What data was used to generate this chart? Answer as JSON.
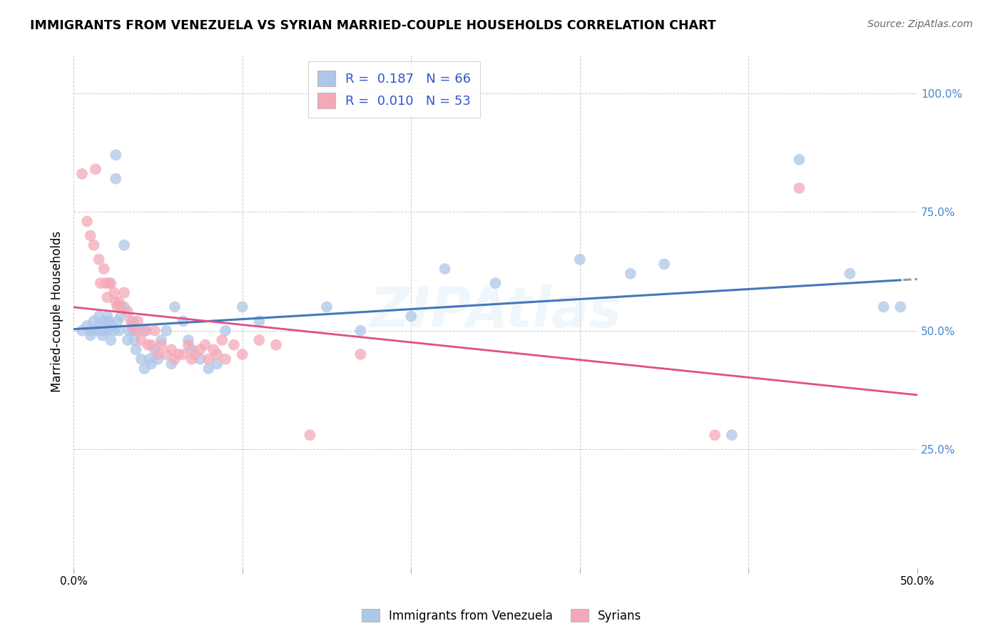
{
  "title": "IMMIGRANTS FROM VENEZUELA VS SYRIAN MARRIED-COUPLE HOUSEHOLDS CORRELATION CHART",
  "source": "Source: ZipAtlas.com",
  "xlabel": "",
  "ylabel": "Married-couple Households",
  "xlim": [
    0.0,
    0.5
  ],
  "ylim": [
    0.0,
    1.08
  ],
  "yticks": [
    0.25,
    0.5,
    0.75,
    1.0
  ],
  "ytick_labels": [
    "25.0%",
    "50.0%",
    "75.0%",
    "100.0%"
  ],
  "xticks": [
    0.0,
    0.1,
    0.2,
    0.3,
    0.4,
    0.5
  ],
  "xtick_labels": [
    "0.0%",
    "",
    "",
    "",
    "",
    "50.0%"
  ],
  "legend_r_venezuela": "0.187",
  "legend_n_venezuela": "66",
  "legend_r_syrian": "0.010",
  "legend_n_syrian": "53",
  "color_venezuela": "#aec6e8",
  "color_syrian": "#f4a9b8",
  "color_trendline_venezuela": "#4477bb",
  "color_trendline_syrian": "#e05080",
  "venezuela_x": [
    0.005,
    0.008,
    0.01,
    0.01,
    0.012,
    0.013,
    0.015,
    0.015,
    0.016,
    0.017,
    0.018,
    0.018,
    0.019,
    0.02,
    0.02,
    0.021,
    0.022,
    0.023,
    0.024,
    0.025,
    0.025,
    0.026,
    0.027,
    0.028,
    0.03,
    0.03,
    0.032,
    0.033,
    0.035,
    0.035,
    0.036,
    0.037,
    0.038,
    0.04,
    0.042,
    0.043,
    0.045,
    0.046,
    0.048,
    0.05,
    0.052,
    0.055,
    0.058,
    0.06,
    0.065,
    0.068,
    0.07,
    0.075,
    0.08,
    0.085,
    0.09,
    0.1,
    0.11,
    0.15,
    0.17,
    0.2,
    0.22,
    0.25,
    0.3,
    0.33,
    0.35,
    0.39,
    0.43,
    0.46,
    0.48,
    0.49
  ],
  "venezuela_y": [
    0.5,
    0.51,
    0.5,
    0.49,
    0.52,
    0.5,
    0.53,
    0.51,
    0.5,
    0.49,
    0.52,
    0.5,
    0.51,
    0.53,
    0.5,
    0.52,
    0.48,
    0.51,
    0.5,
    0.87,
    0.82,
    0.52,
    0.5,
    0.53,
    0.68,
    0.55,
    0.48,
    0.5,
    0.52,
    0.5,
    0.48,
    0.46,
    0.5,
    0.44,
    0.42,
    0.5,
    0.44,
    0.43,
    0.46,
    0.44,
    0.48,
    0.5,
    0.43,
    0.55,
    0.52,
    0.48,
    0.46,
    0.44,
    0.42,
    0.43,
    0.5,
    0.55,
    0.52,
    0.55,
    0.5,
    0.53,
    0.63,
    0.6,
    0.65,
    0.62,
    0.64,
    0.28,
    0.86,
    0.62,
    0.55,
    0.55
  ],
  "syrian_x": [
    0.005,
    0.008,
    0.01,
    0.012,
    0.013,
    0.015,
    0.016,
    0.018,
    0.019,
    0.02,
    0.021,
    0.022,
    0.024,
    0.025,
    0.026,
    0.027,
    0.028,
    0.03,
    0.032,
    0.034,
    0.035,
    0.037,
    0.038,
    0.04,
    0.042,
    0.044,
    0.046,
    0.048,
    0.05,
    0.052,
    0.055,
    0.058,
    0.06,
    0.062,
    0.065,
    0.068,
    0.07,
    0.072,
    0.075,
    0.078,
    0.08,
    0.083,
    0.085,
    0.088,
    0.09,
    0.095,
    0.1,
    0.11,
    0.12,
    0.14,
    0.17,
    0.38,
    0.43
  ],
  "syrian_y": [
    0.83,
    0.73,
    0.7,
    0.68,
    0.84,
    0.65,
    0.6,
    0.63,
    0.6,
    0.57,
    0.6,
    0.6,
    0.58,
    0.56,
    0.55,
    0.56,
    0.55,
    0.58,
    0.54,
    0.52,
    0.51,
    0.5,
    0.52,
    0.48,
    0.5,
    0.47,
    0.47,
    0.5,
    0.45,
    0.47,
    0.45,
    0.46,
    0.44,
    0.45,
    0.45,
    0.47,
    0.44,
    0.45,
    0.46,
    0.47,
    0.44,
    0.46,
    0.45,
    0.48,
    0.44,
    0.47,
    0.45,
    0.48,
    0.47,
    0.28,
    0.45,
    0.28,
    0.8
  ]
}
